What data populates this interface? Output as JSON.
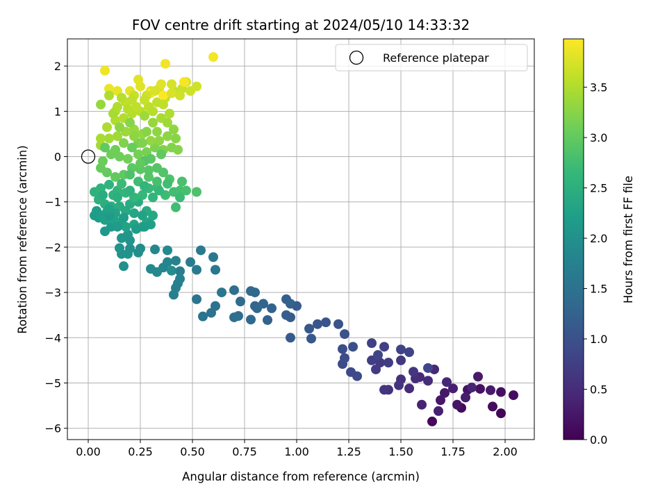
{
  "chart_data": {
    "type": "scatter",
    "title": "FOV centre drift starting at 2024/05/10 14:33:32",
    "xlabel": "Angular distance from reference (arcmin)",
    "ylabel": "Rotation from reference (arcmin)",
    "xlim": [
      -0.1,
      2.14
    ],
    "ylim": [
      -6.25,
      2.6
    ],
    "xticks": [
      0.0,
      0.25,
      0.5,
      0.75,
      1.0,
      1.25,
      1.5,
      1.75,
      2.0
    ],
    "xtick_labels": [
      "0.00",
      "0.25",
      "0.50",
      "0.75",
      "1.00",
      "1.25",
      "1.50",
      "1.75",
      "2.00"
    ],
    "yticks": [
      2,
      1,
      0,
      -1,
      -2,
      -3,
      -4,
      -5,
      -6
    ],
    "ytick_labels": [
      "2",
      "1",
      "0",
      "−1",
      "−2",
      "−3",
      "−4",
      "−5",
      "−6"
    ],
    "grid": true,
    "legend": {
      "position": "top-right",
      "entries": [
        "Reference platepar"
      ]
    },
    "reference_point": {
      "x": 0.0,
      "y": 0.0
    },
    "colorbar": {
      "label": "Hours from first FF file",
      "range": [
        0.0,
        3.98
      ],
      "ticks": [
        0.0,
        0.5,
        1.0,
        1.5,
        2.0,
        2.5,
        3.0,
        3.5
      ],
      "tick_labels": [
        "0.0",
        "0.5",
        "1.0",
        "1.5",
        "2.0",
        "2.5",
        "3.0",
        "3.5"
      ],
      "colormap": "viridis"
    },
    "points": [
      [
        1.98,
        -5.67,
        0.05
      ],
      [
        1.65,
        -5.85,
        0.08
      ],
      [
        1.79,
        -5.55,
        0.1
      ],
      [
        1.94,
        -5.52,
        0.12
      ],
      [
        2.04,
        -5.27,
        0.14
      ],
      [
        1.98,
        -5.2,
        0.16
      ],
      [
        1.88,
        -5.13,
        0.18
      ],
      [
        1.82,
        -5.15,
        0.2
      ],
      [
        1.77,
        -5.48,
        0.22
      ],
      [
        1.69,
        -5.38,
        0.24
      ],
      [
        1.71,
        -5.22,
        0.26
      ],
      [
        1.87,
        -4.86,
        0.28
      ],
      [
        1.93,
        -5.16,
        0.3
      ],
      [
        1.81,
        -5.32,
        0.32
      ],
      [
        1.75,
        -5.12,
        0.34
      ],
      [
        1.68,
        -5.62,
        0.36
      ],
      [
        1.6,
        -5.48,
        0.38
      ],
      [
        1.84,
        -5.1,
        0.4
      ],
      [
        1.72,
        -4.98,
        0.42
      ],
      [
        1.66,
        -4.7,
        0.44
      ],
      [
        1.59,
        -4.87,
        0.46
      ],
      [
        1.54,
        -5.12,
        0.48
      ],
      [
        1.63,
        -4.95,
        0.5
      ],
      [
        1.57,
        -4.9,
        0.52
      ],
      [
        1.5,
        -4.92,
        0.55
      ],
      [
        1.44,
        -5.15,
        0.58
      ],
      [
        1.49,
        -5.05,
        0.6
      ],
      [
        1.42,
        -5.15,
        0.62
      ],
      [
        1.56,
        -4.75,
        0.64
      ],
      [
        1.5,
        -4.5,
        0.66
      ],
      [
        1.4,
        -4.55,
        0.68
      ],
      [
        1.38,
        -4.7,
        0.7
      ],
      [
        1.44,
        -4.55,
        0.72
      ],
      [
        1.36,
        -4.5,
        0.74
      ],
      [
        1.42,
        -4.2,
        0.76
      ],
      [
        1.36,
        -4.12,
        0.78
      ],
      [
        1.5,
        -4.26,
        0.8
      ],
      [
        1.54,
        -4.32,
        0.82
      ],
      [
        1.39,
        -4.38,
        0.84
      ],
      [
        1.63,
        -4.67,
        0.86
      ],
      [
        1.26,
        -4.76,
        0.88
      ],
      [
        1.29,
        -4.85,
        0.9
      ],
      [
        1.22,
        -4.58,
        0.92
      ],
      [
        1.23,
        -4.45,
        0.94
      ],
      [
        1.22,
        -4.25,
        0.96
      ],
      [
        1.27,
        -4.2,
        0.98
      ],
      [
        1.23,
        -3.92,
        1.0
      ],
      [
        1.2,
        -3.7,
        1.02
      ],
      [
        1.14,
        -3.66,
        1.04
      ],
      [
        1.1,
        -3.7,
        1.06
      ],
      [
        1.06,
        -3.8,
        1.08
      ],
      [
        1.07,
        -4.02,
        1.1
      ],
      [
        0.97,
        -4.0,
        1.12
      ],
      [
        1.0,
        -3.3,
        1.14
      ],
      [
        0.97,
        -3.55,
        1.16
      ],
      [
        0.95,
        -3.5,
        1.18
      ],
      [
        0.95,
        -3.15,
        1.2
      ],
      [
        0.97,
        -3.25,
        1.22
      ],
      [
        0.86,
        -3.61,
        1.24
      ],
      [
        0.88,
        -3.35,
        1.26
      ],
      [
        0.84,
        -3.25,
        1.28
      ],
      [
        0.8,
        -3.3,
        1.3
      ],
      [
        0.81,
        -3.35,
        1.32
      ],
      [
        0.78,
        -3.6,
        1.34
      ],
      [
        0.78,
        -2.97,
        1.36
      ],
      [
        0.8,
        -3.0,
        1.38
      ],
      [
        0.73,
        -3.2,
        1.4
      ],
      [
        0.72,
        -3.52,
        1.42
      ],
      [
        0.7,
        -3.55,
        1.44
      ],
      [
        0.7,
        -2.95,
        1.46
      ],
      [
        0.61,
        -3.3,
        1.48
      ],
      [
        0.59,
        -3.45,
        1.5
      ],
      [
        0.55,
        -3.53,
        1.52
      ],
      [
        0.52,
        -3.15,
        1.54
      ],
      [
        0.64,
        -3.0,
        1.56
      ],
      [
        0.61,
        -2.5,
        1.58
      ],
      [
        0.6,
        -2.22,
        1.6
      ],
      [
        0.54,
        -2.07,
        1.62
      ],
      [
        0.52,
        -2.5,
        1.64
      ],
      [
        0.49,
        -2.33,
        1.66
      ],
      [
        0.44,
        -2.53,
        1.68
      ],
      [
        0.43,
        -2.8,
        1.7
      ],
      [
        0.42,
        -2.9,
        1.72
      ],
      [
        0.41,
        -3.05,
        1.74
      ],
      [
        0.44,
        -2.7,
        1.76
      ],
      [
        0.42,
        -2.3,
        1.78
      ],
      [
        0.38,
        -2.33,
        1.8
      ],
      [
        0.36,
        -2.45,
        1.82
      ],
      [
        0.32,
        -2.05,
        1.84
      ],
      [
        0.33,
        -2.55,
        1.86
      ],
      [
        0.3,
        -2.48,
        1.88
      ],
      [
        0.38,
        -2.07,
        1.9
      ],
      [
        0.4,
        -2.52,
        1.92
      ],
      [
        0.25,
        -2.03,
        1.94
      ],
      [
        0.2,
        -2.03,
        1.96
      ],
      [
        0.24,
        -2.12,
        1.98
      ],
      [
        0.17,
        -2.42,
        2.0
      ],
      [
        0.16,
        -2.15,
        2.02
      ],
      [
        0.19,
        -2.15,
        2.04
      ],
      [
        0.15,
        -2.02,
        2.06
      ],
      [
        0.16,
        -1.8,
        2.08
      ],
      [
        0.19,
        -1.72,
        2.1
      ],
      [
        0.08,
        -1.65,
        2.12
      ],
      [
        0.11,
        -1.55,
        2.14
      ],
      [
        0.05,
        -1.35,
        2.16
      ],
      [
        0.03,
        -1.3,
        2.18
      ],
      [
        0.04,
        -1.2,
        2.2
      ],
      [
        0.06,
        -1.3,
        2.22
      ],
      [
        0.09,
        -1.22,
        2.24
      ],
      [
        0.12,
        -1.38,
        2.26
      ],
      [
        0.15,
        -1.45,
        2.28
      ],
      [
        0.18,
        -1.55,
        2.3
      ],
      [
        0.22,
        -1.5,
        2.32
      ],
      [
        0.26,
        -1.55,
        2.34
      ],
      [
        0.28,
        -1.45,
        2.36
      ],
      [
        0.31,
        -1.3,
        2.38
      ],
      [
        0.28,
        -1.2,
        2.4
      ],
      [
        0.24,
        -1.0,
        2.42
      ],
      [
        0.2,
        -1.05,
        2.44
      ],
      [
        0.15,
        -1.1,
        2.46
      ],
      [
        0.11,
        -1.1,
        2.48
      ],
      [
        0.08,
        -1.05,
        2.5
      ],
      [
        0.05,
        -0.95,
        2.52
      ],
      [
        0.03,
        -0.78,
        2.54
      ],
      [
        0.06,
        -0.7,
        2.56
      ],
      [
        0.1,
        -0.62,
        2.58
      ],
      [
        0.14,
        -0.75,
        2.6
      ],
      [
        0.18,
        -0.8,
        2.62
      ],
      [
        0.22,
        -0.9,
        2.64
      ],
      [
        0.26,
        -0.85,
        2.66
      ],
      [
        0.29,
        -0.7,
        2.68
      ],
      [
        0.33,
        -0.68,
        2.7
      ],
      [
        0.37,
        -0.85,
        2.72
      ],
      [
        0.42,
        -1.12,
        2.74
      ],
      [
        0.41,
        -0.78,
        2.76
      ],
      [
        0.44,
        -0.75,
        2.78
      ],
      [
        0.47,
        -0.75,
        2.8
      ],
      [
        0.45,
        -0.55,
        2.82
      ],
      [
        0.52,
        -0.78,
        2.84
      ],
      [
        0.39,
        -0.5,
        2.86
      ],
      [
        0.36,
        -0.35,
        2.88
      ],
      [
        0.33,
        -0.25,
        2.9
      ],
      [
        0.29,
        -0.3,
        2.92
      ],
      [
        0.25,
        -0.28,
        2.94
      ],
      [
        0.21,
        -0.25,
        2.96
      ],
      [
        0.17,
        -0.4,
        2.98
      ],
      [
        0.13,
        -0.45,
        3.0
      ],
      [
        0.09,
        -0.35,
        3.02
      ],
      [
        0.06,
        -0.25,
        3.04
      ],
      [
        0.07,
        -0.1,
        3.06
      ],
      [
        0.11,
        0.05,
        3.08
      ],
      [
        0.15,
        0.0,
        3.1
      ],
      [
        0.19,
        -0.05,
        3.12
      ],
      [
        0.24,
        0.05,
        3.14
      ],
      [
        0.28,
        0.1,
        3.16
      ],
      [
        0.32,
        0.2,
        3.18
      ],
      [
        0.36,
        0.15,
        3.2
      ],
      [
        0.4,
        0.2,
        3.22
      ],
      [
        0.43,
        0.15,
        3.24
      ],
      [
        0.42,
        0.4,
        3.26
      ],
      [
        0.38,
        0.45,
        3.28
      ],
      [
        0.34,
        0.35,
        3.3
      ],
      [
        0.3,
        0.35,
        3.32
      ],
      [
        0.26,
        0.5,
        3.34
      ],
      [
        0.22,
        0.6,
        3.36
      ],
      [
        0.18,
        0.55,
        3.38
      ],
      [
        0.14,
        0.45,
        3.4
      ],
      [
        0.1,
        0.4,
        3.42
      ],
      [
        0.06,
        0.25,
        3.44
      ],
      [
        0.06,
        0.4,
        3.46
      ],
      [
        0.09,
        0.65,
        3.48
      ],
      [
        0.13,
        0.8,
        3.5
      ],
      [
        0.17,
        0.85,
        3.52
      ],
      [
        0.21,
        0.95,
        3.54
      ],
      [
        0.25,
        1.0,
        3.56
      ],
      [
        0.29,
        1.1,
        3.58
      ],
      [
        0.33,
        1.2,
        3.6
      ],
      [
        0.37,
        1.3,
        3.62
      ],
      [
        0.41,
        1.45,
        3.64
      ],
      [
        0.45,
        1.5,
        3.66
      ],
      [
        0.49,
        1.45,
        3.68
      ],
      [
        0.52,
        1.55,
        3.7
      ],
      [
        0.47,
        1.65,
        3.72
      ],
      [
        0.4,
        1.6,
        3.74
      ],
      [
        0.34,
        1.5,
        3.76
      ],
      [
        0.3,
        1.45,
        3.78
      ],
      [
        0.25,
        1.55,
        3.8
      ],
      [
        0.2,
        1.45,
        3.82
      ],
      [
        0.14,
        1.45,
        3.84
      ],
      [
        0.1,
        1.5,
        3.86
      ],
      [
        0.08,
        1.9,
        3.88
      ],
      [
        0.37,
        2.05,
        3.9
      ],
      [
        0.6,
        2.2,
        3.92
      ],
      [
        0.46,
        1.65,
        3.94
      ],
      [
        0.3,
        1.4,
        3.96
      ],
      [
        0.36,
        1.35,
        3.98
      ],
      [
        0.13,
        1.0,
        3.55
      ],
      [
        0.12,
        0.95,
        3.45
      ],
      [
        0.18,
        1.2,
        3.6
      ],
      [
        0.22,
        1.35,
        3.65
      ],
      [
        0.06,
        1.15,
        3.35
      ],
      [
        0.1,
        1.35,
        3.5
      ],
      [
        0.27,
        0.9,
        3.4
      ],
      [
        0.31,
        0.75,
        3.35
      ],
      [
        0.35,
        0.85,
        3.45
      ],
      [
        0.39,
        0.95,
        3.5
      ],
      [
        0.41,
        0.6,
        3.3
      ],
      [
        0.2,
        0.75,
        3.25
      ],
      [
        0.17,
        0.3,
        3.2
      ],
      [
        0.24,
        0.3,
        3.15
      ],
      [
        0.28,
        0.55,
        3.25
      ],
      [
        0.13,
        0.15,
        3.1
      ],
      [
        0.08,
        0.2,
        3.0
      ],
      [
        0.21,
        0.2,
        3.05
      ],
      [
        0.3,
        -0.05,
        2.95
      ],
      [
        0.35,
        0.05,
        3.0
      ],
      [
        0.27,
        -0.1,
        2.9
      ],
      [
        0.2,
        -0.4,
        2.85
      ],
      [
        0.24,
        -0.55,
        2.75
      ],
      [
        0.16,
        -0.6,
        2.7
      ],
      [
        0.12,
        -0.85,
        2.55
      ],
      [
        0.2,
        -0.75,
        2.55
      ],
      [
        0.27,
        -0.65,
        2.6
      ],
      [
        0.31,
        -0.9,
        2.6
      ],
      [
        0.14,
        -0.9,
        2.5
      ],
      [
        0.07,
        -0.85,
        2.45
      ],
      [
        0.18,
        -1.2,
        2.4
      ],
      [
        0.22,
        -1.25,
        2.35
      ],
      [
        0.13,
        -1.25,
        2.3
      ],
      [
        0.08,
        -1.4,
        2.25
      ],
      [
        0.26,
        -1.3,
        2.3
      ],
      [
        0.23,
        -1.6,
        2.2
      ],
      [
        0.17,
        -1.35,
        2.2
      ],
      [
        0.1,
        -1.3,
        2.15
      ],
      [
        0.3,
        -1.5,
        2.25
      ],
      [
        0.14,
        -1.55,
        2.15
      ],
      [
        0.2,
        -1.85,
        2.05
      ],
      [
        0.27,
        -1.55,
        2.2
      ],
      [
        0.1,
        -1.15,
        2.3
      ],
      [
        0.34,
        -0.75,
        2.65
      ],
      [
        0.38,
        -0.6,
        2.75
      ],
      [
        0.44,
        -0.9,
        2.7
      ],
      [
        0.33,
        -0.55,
        2.8
      ],
      [
        0.29,
        -0.45,
        2.9
      ],
      [
        0.25,
        -0.15,
        3.0
      ],
      [
        0.22,
        0.45,
        3.3
      ],
      [
        0.26,
        0.3,
        3.2
      ],
      [
        0.33,
        0.55,
        3.3
      ],
      [
        0.38,
        0.75,
        3.4
      ],
      [
        0.15,
        0.65,
        3.3
      ],
      [
        0.19,
        1.05,
        3.55
      ],
      [
        0.23,
        1.1,
        3.6
      ],
      [
        0.28,
        1.35,
        3.7
      ],
      [
        0.32,
        1.45,
        3.75
      ],
      [
        0.35,
        1.6,
        3.8
      ],
      [
        0.24,
        1.7,
        3.8
      ],
      [
        0.27,
        1.25,
        3.65
      ],
      [
        0.4,
        1.4,
        3.75
      ],
      [
        0.44,
        1.35,
        3.7
      ],
      [
        0.16,
        1.3,
        3.55
      ],
      [
        0.14,
        1.1,
        3.5
      ],
      [
        0.21,
        1.25,
        3.6
      ],
      [
        0.31,
        1.0,
        3.55
      ],
      [
        0.36,
        1.15,
        3.6
      ]
    ]
  }
}
